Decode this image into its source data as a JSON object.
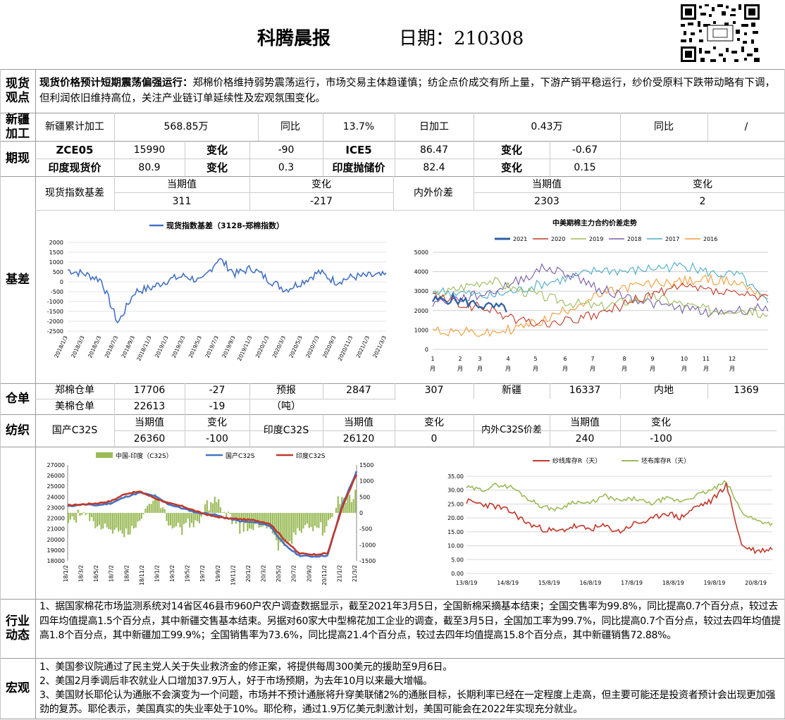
{
  "header": {
    "title": "科腾晨报",
    "date_label": "日期：210308"
  },
  "sections": {
    "spot": "现货\n观点",
    "xinjiang": "新疆\n加工",
    "futures": "期现",
    "basis": "基差",
    "warehouse": "仓单",
    "spinning": "纺织",
    "industry": "行业\n动态",
    "macro": "宏观"
  },
  "spot_view": {
    "lead": "现货价格预计短期震荡偏强运行：",
    "body": "郑棉价格维持弱势震荡运行，市场交易主体趋谨慎；纺企点价成交有所上量，下游产销平稳运行，纱价受原料下跌带动略有下调，但利润依旧维持高位，关注产业链订单延续性及宏观氛围变化。"
  },
  "xinjiang": {
    "label1": "新疆累计加工",
    "value1": "568.85万",
    "label2": "同比",
    "value2": "13.7%",
    "label3": "日加工",
    "value3": "0.43万",
    "label4": "同比",
    "value4": "/"
  },
  "futures": {
    "row1": {
      "name1": "ZCE05",
      "price1": "15990",
      "chg_label1": "变化",
      "chg1": "-90",
      "name2": "ICE5",
      "price2": "86.47",
      "chg_label2": "变化",
      "chg2": "-0.67"
    },
    "row2": {
      "name1": "印度现货价",
      "price1": "80.9",
      "chg_label1": "变化",
      "chg1": "0.3",
      "name2": "印度抛储价",
      "price2": "82.4",
      "chg_label2": "变化",
      "chg2": "0.15"
    }
  },
  "basis": {
    "label1": "现货指数基差",
    "hdr_current": "当期值",
    "hdr_change": "变化",
    "value1": "311",
    "change1": "-217",
    "label2": "内外价差",
    "hdr_current2": "当期值",
    "hdr_change2": "变化",
    "value2": "2303",
    "change2": "2"
  },
  "warehouse": {
    "zc_label": "郑棉仓单",
    "zc_value": "17706",
    "zc_change": "-27",
    "fc_label": "预报",
    "fc_unit": "（吨）",
    "fc_value": "2847",
    "fc_change": "307",
    "xj_label": "新疆",
    "xj_value": "16337",
    "nd_label": "内地",
    "nd_value": "1369",
    "us_label": "美棉仓单",
    "us_value": "22613",
    "us_change": "-19"
  },
  "spinning": {
    "label1": "国产C32S",
    "hdr_current": "当期值",
    "hdr_change": "变化",
    "value1": "26360",
    "change1": "-100",
    "label2": "印度C32S",
    "hdr_current2": "当期值",
    "hdr_change2": "变化",
    "value2": "26120",
    "change2": "0",
    "label3": "内外C32S价差",
    "hdr_current3": "当期值",
    "hdr_change3": "变化",
    "value3": "240",
    "change3": "-100"
  },
  "industry_text": "1、据国家棉花市场监测系统对14省区46县市960户农户调查数据显示，截至2021年3月5日，全国新棉采摘基本结束；全国交售率为99.8%，同比提高0.7个百分点，较过去四年均值提高1.5个百分点，其中新疆交售基本结束。另据对60家大中型棉花加工企业的调查，截至3月5日，全国加工率为99.7%，同比提高0.7个百分点，较过去四年均值提高1.8个百分点，其中新疆加工99.9%；全国销售率为73.6%，同比提高21.4个百分点，较过去四年均值提高15.8个百分点，其中新疆销售72.88%。",
  "macro": [
    "1、美国参议院通过了民主党人关于失业救济金的修正案，将提供每周300美元的援助至9月6日。",
    "2、美国2月季调后非农就业人口增加37.9万人，好于市场预期，为去年10月以来最大增幅。",
    "3、美国财长耶伦认为通胀不会演变为一个问题，市场并不预计通胀将升穿美联储2%的通胀目标，长期利率已经在一定程度上走高，但主要可能还是投资者预计会出现更加强劲的复苏。耶伦表示，美国真实的失业率处于10%。耶伦称，通过1.9万亿美元刺激计划，美国可能会在2022年实现充分就业。"
  ],
  "chart_data": [
    {
      "type": "line",
      "title": "",
      "series": [
        {
          "name": "现货指数基差（3128-郑棉指数）",
          "color": "#4472c4"
        }
      ],
      "x": [
        "2018/1/3",
        "2018/3/3",
        "2018/5/3",
        "2018/7/3",
        "2018/9/3",
        "2018/11/3",
        "2019/1/3",
        "2019/3/3",
        "2019/5/3",
        "2019/7/3",
        "2019/9/3",
        "2019/11/3",
        "2020/1/3",
        "2020/3/3",
        "2020/5/3",
        "2020/7/3",
        "2020/9/3",
        "2020/11/3",
        "2021/1/3",
        "2021/3/3"
      ],
      "values": [
        600,
        400,
        100,
        -2100,
        -500,
        -300,
        100,
        300,
        0,
        1200,
        400,
        700,
        100,
        -400,
        0,
        500,
        0,
        250,
        300,
        311
      ],
      "ylim": [
        -2500,
        2000
      ],
      "yticks": [
        "2000",
        "1500",
        "1000",
        "500",
        "0",
        "-500",
        "-1000",
        "-1500",
        "-2000",
        "-2500"
      ]
    },
    {
      "type": "line",
      "title": "中美期棉主力合约价差走势",
      "series": [
        {
          "name": "2021",
          "color": "#2e5fa3"
        },
        {
          "name": "2020",
          "color": "#c0392b"
        },
        {
          "name": "2019",
          "color": "#9bbb59"
        },
        {
          "name": "2018",
          "color": "#7a5ca8"
        },
        {
          "name": "2017",
          "color": "#4bacc6"
        },
        {
          "name": "2016",
          "color": "#f39c38"
        }
      ],
      "x": [
        "1月",
        "2月",
        "3月",
        "4月",
        "5月",
        "6月",
        "7月",
        "8月",
        "9月",
        "10月",
        "11月",
        "12月"
      ],
      "ylim": [
        0,
        5000
      ],
      "yticks": [
        "5000",
        "4000",
        "3000",
        "2000",
        "1000",
        "0"
      ]
    },
    {
      "type": "bar",
      "title": "",
      "series": [
        {
          "name": "中国-印度（C32S）",
          "color": "#9bbb59"
        },
        {
          "name": "国产C32S",
          "color": "#4472c4"
        },
        {
          "name": "印度C32S",
          "color": "#c0392b"
        }
      ],
      "x": [
        "18/1/2",
        "18/3/2",
        "18/5/2",
        "18/7/2",
        "18/9/2",
        "18/11/2",
        "19/1/2",
        "19/3/2",
        "19/5/2",
        "19/7/2",
        "19/9/2",
        "19/11/2",
        "20/1/2",
        "20/3/2",
        "20/5/2",
        "20/7/2",
        "20/9/2",
        "20/11/2",
        "21/1/2",
        "21/3/2"
      ],
      "yticks_left": [
        "27000",
        "26000",
        "25000",
        "24000",
        "23000",
        "22000",
        "21000",
        "20000",
        "19000",
        "18000"
      ],
      "yticks_right": [
        "1500",
        "1000",
        "500",
        "0",
        "-500",
        "-1000",
        "-1500"
      ]
    },
    {
      "type": "line",
      "title": "",
      "series": [
        {
          "name": "纱线库存R（天）",
          "color": "#c0392b"
        },
        {
          "name": "坯布库存R（天）",
          "color": "#9bbb59"
        }
      ],
      "x": [
        "13/8/19",
        "14/8/19",
        "15/8/19",
        "16/8/19",
        "17/8/19",
        "18/8/19",
        "19/8/19",
        "20/8/19"
      ],
      "yticks": [
        "35.00",
        "30.00",
        "25.00",
        "20.00",
        "15.00",
        "10.00",
        "5.00",
        "0.00"
      ]
    }
  ]
}
